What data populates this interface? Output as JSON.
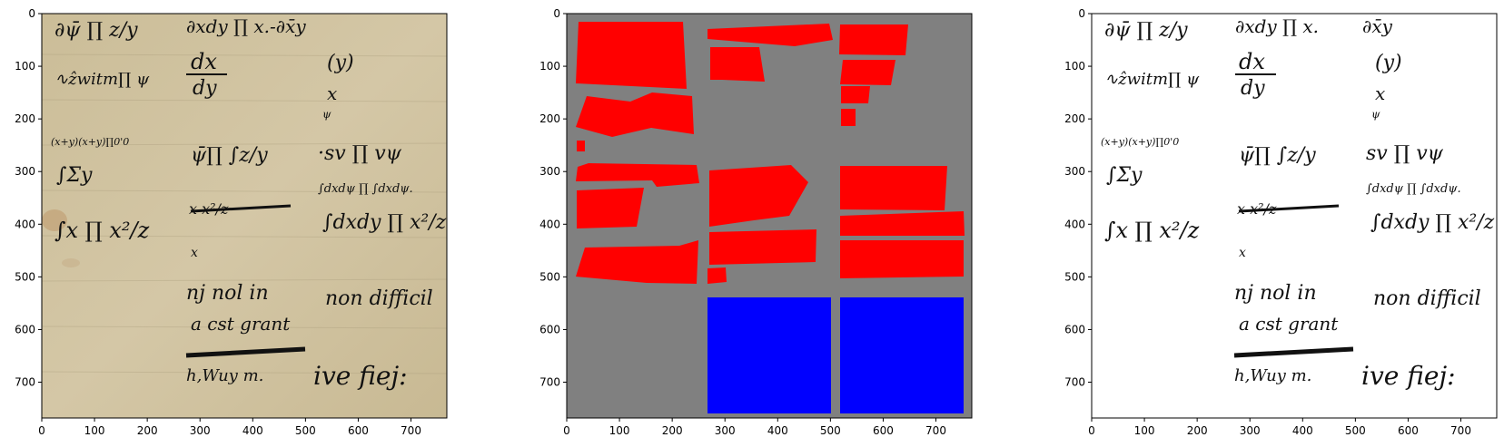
{
  "figure": {
    "panels": [
      {
        "id": "original",
        "x_ticks": [
          "0",
          "100",
          "200",
          "300",
          "400",
          "500",
          "600",
          "700"
        ],
        "y_ticks": [
          "0",
          "100",
          "200",
          "300",
          "400",
          "500",
          "600",
          "700"
        ]
      },
      {
        "id": "mask",
        "x_ticks": [
          "0",
          "100",
          "200",
          "300",
          "400",
          "500",
          "600",
          "700"
        ],
        "y_ticks": [
          "0",
          "100",
          "200",
          "300",
          "400",
          "500",
          "600",
          "700"
        ]
      },
      {
        "id": "binarized",
        "x_ticks": [
          "0",
          "100",
          "200",
          "300",
          "400",
          "500",
          "600",
          "700"
        ],
        "y_ticks": [
          "0",
          "100",
          "200",
          "300",
          "400",
          "500",
          "600",
          "700"
        ]
      }
    ],
    "colors": {
      "parchment": "#cdbf9c",
      "mask_background": "#808080",
      "mask_red": "#ff0000",
      "mask_blue": "#0000ff",
      "ink": "#111111"
    }
  }
}
